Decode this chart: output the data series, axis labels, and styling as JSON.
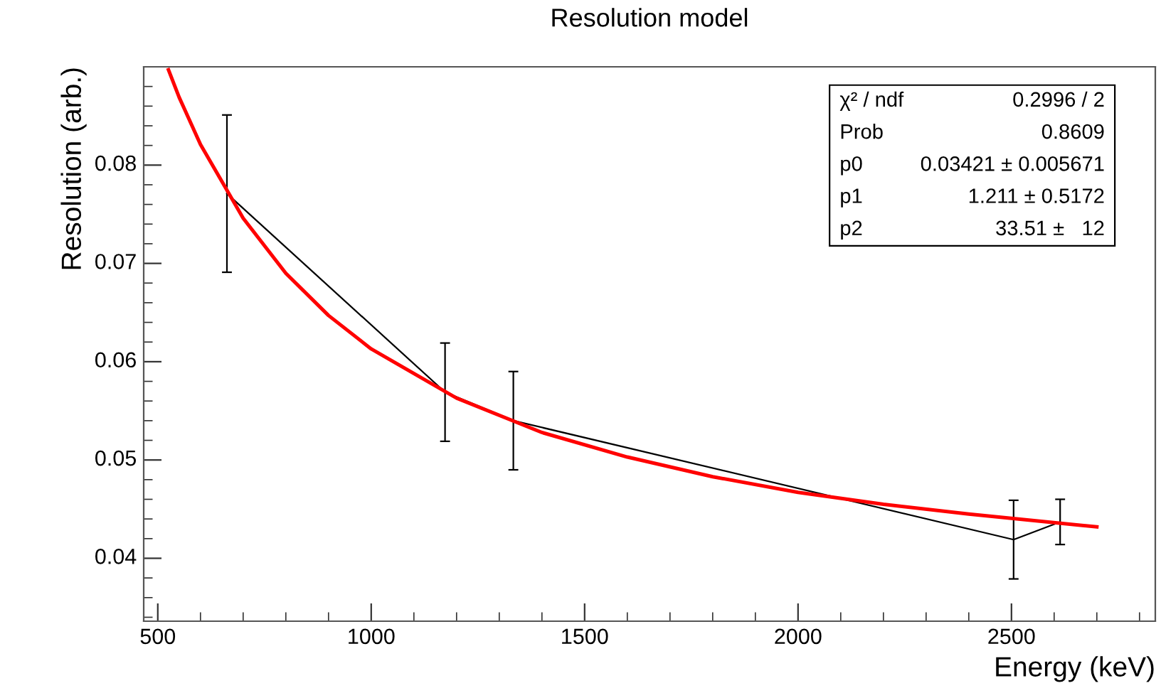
{
  "chart_data": {
    "type": "line",
    "title": "Resolution model",
    "xlabel": "Energy (keV)",
    "ylabel": "Resolution (arb.)",
    "xlim": [
      467,
      2837
    ],
    "ylim": [
      0.0336,
      0.09
    ],
    "xticks": [
      500,
      1000,
      1500,
      2000,
      2500
    ],
    "yticks": [
      0.04,
      0.05,
      0.06,
      0.07,
      0.08
    ],
    "grid": false,
    "legend": false,
    "marker": "none",
    "line_style": "solid",
    "series": [
      {
        "color": "#000000",
        "x": [
          662,
          1173,
          1333,
          2505,
          2614
        ],
        "values": [
          0.0771,
          0.0569,
          0.054,
          0.0419,
          0.0437
        ],
        "errors": [
          0.008,
          0.005,
          0.005,
          0.004,
          0.0023
        ]
      },
      {
        "color": "#ff0000",
        "x": [
          525,
          550,
          600,
          700,
          800,
          900,
          1000,
          1200,
          1400,
          1600,
          1800,
          2000,
          2200,
          2400,
          2700
        ],
        "values": [
          0.0897,
          0.0869,
          0.0821,
          0.0746,
          0.069,
          0.0647,
          0.0613,
          0.0563,
          0.0528,
          0.0503,
          0.0483,
          0.0467,
          0.0455,
          0.0445,
          0.0432
        ]
      }
    ],
    "annotations": [
      "χ² / ndf",
      "0.2996 / 2",
      "Prob",
      "0.8609",
      "p0",
      "0.03421 ± 0.005671",
      "p1",
      "1.211 ± 0.5172",
      "p2",
      "33.51 ±   12"
    ]
  }
}
